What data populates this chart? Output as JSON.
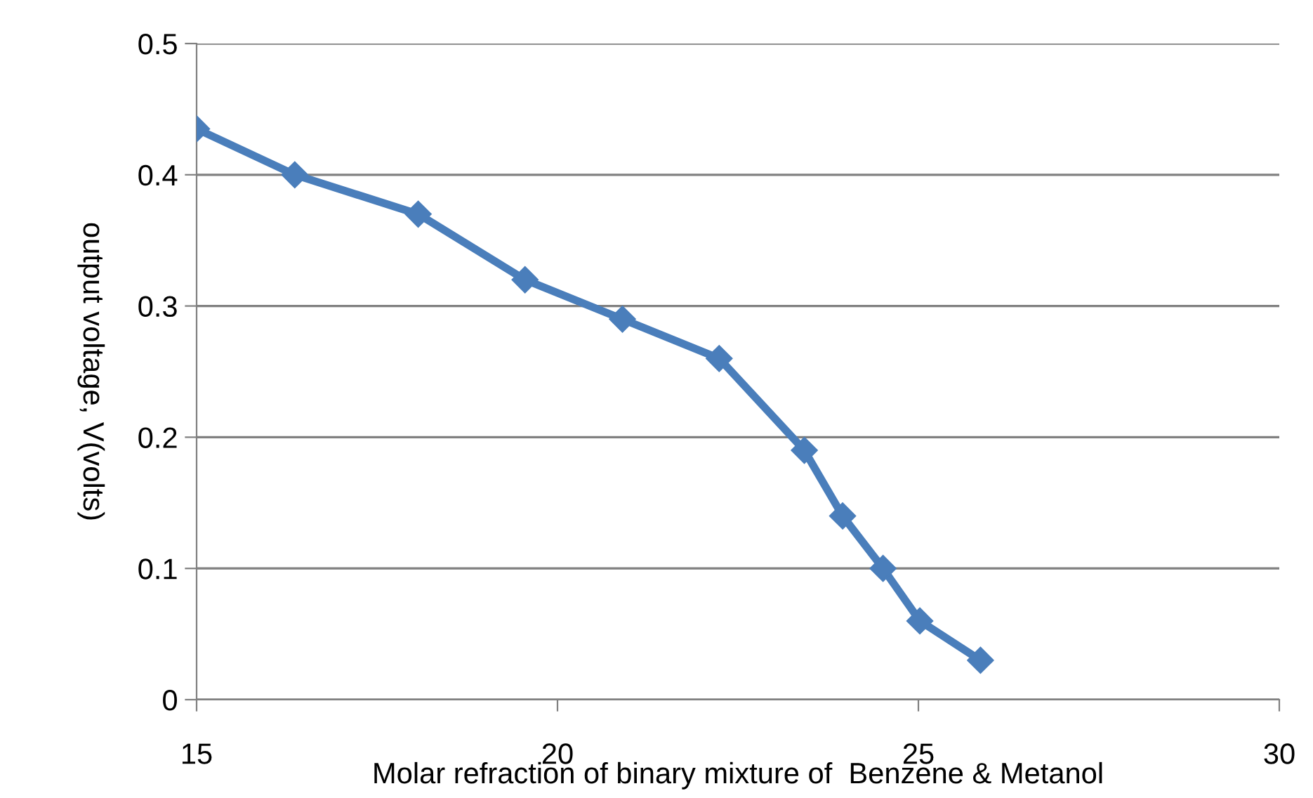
{
  "chart_data": {
    "type": "line",
    "xlabel": "Molar refraction of binary mixture of  Benzene & Metanol",
    "ylabel": "output voltage, V(volts)",
    "x": [
      15,
      16.36,
      18.07,
      19.55,
      20.9,
      22.24,
      23.42,
      23.95,
      24.51,
      25.02,
      25.86
    ],
    "series": [
      {
        "color": "#4a7ebb",
        "values": [
          0.435,
          0.4,
          0.37,
          0.32,
          0.29,
          0.26,
          0.19,
          0.14,
          0.1,
          0.06,
          0.03
        ]
      }
    ],
    "xlim": [
      15,
      30
    ],
    "xticks": [
      15,
      20,
      25,
      30
    ],
    "ylim": [
      0,
      0.5
    ],
    "yticks": [
      0,
      0.1,
      0.2,
      0.3,
      0.4,
      0.5
    ],
    "grid": "y",
    "marker": "diamond",
    "line_style": "solid",
    "legend": false
  }
}
